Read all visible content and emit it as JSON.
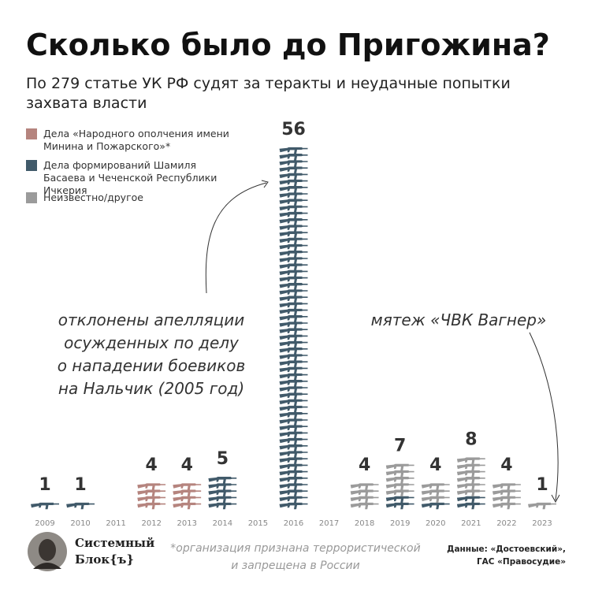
{
  "chart_data": {
    "type": "pictogram_stacked",
    "title": "Сколько было до Пригожина?",
    "subtitle": [
      "По 279 статье УК РФ судят за теракты и неудачные попытки",
      "захвата власти"
    ],
    "categories": [
      "2009",
      "2010",
      "2011",
      "2012",
      "2013",
      "2014",
      "2015",
      "2016",
      "2017",
      "2018",
      "2019",
      "2020",
      "2021",
      "2022",
      "2023"
    ],
    "series": [
      {
        "name": "Дела «Народного ополчения имени Минина и Пожарского»*",
        "color": "#b5847e",
        "values": [
          0,
          0,
          0,
          4,
          4,
          0,
          0,
          0,
          0,
          0,
          0,
          0,
          0,
          0,
          0
        ]
      },
      {
        "name": "Дела формирований Шамиля Басаева и Чеченской Республики Ичкерия",
        "color": "#415a6a",
        "values": [
          1,
          1,
          0,
          0,
          0,
          5,
          0,
          56,
          0,
          0,
          2,
          1,
          2,
          0,
          0
        ]
      },
      {
        "name": "Неизвестно/другое",
        "color": "#9b9b9b",
        "values": [
          0,
          0,
          0,
          0,
          0,
          0,
          0,
          0,
          0,
          4,
          5,
          3,
          6,
          4,
          1
        ]
      }
    ],
    "totals": [
      1,
      1,
      null,
      4,
      4,
      5,
      null,
      56,
      null,
      4,
      7,
      4,
      8,
      4,
      1
    ],
    "annotations": [
      [
        "отклонены апелляции",
        "осужденных по делу",
        "о нападении боевиков",
        "на Нальчик (2005 год)"
      ],
      [
        "мятеж «ЧВК Вагнер»"
      ]
    ]
  },
  "footer": {
    "brand": [
      "Системный",
      "Блок{ъ}"
    ],
    "note": [
      "*организация признана террористической",
      "и запрещена в России"
    ],
    "source": [
      "Данные: «Достоевский»,",
      "ГАС «Правосудие»"
    ]
  }
}
